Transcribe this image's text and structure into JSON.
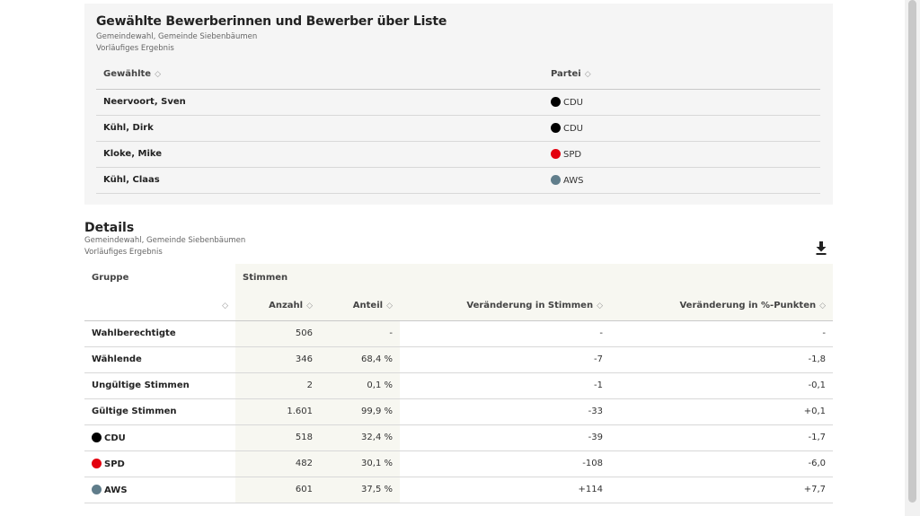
{
  "elected": {
    "title": "Gewählte Bewerberinnen und Bewerber über Liste",
    "subtitle1": "Gemeindewahl, Gemeinde Siebenbäumen",
    "subtitle2": "Vorläufiges Ergebnis",
    "col_name": "Gewählte",
    "col_party": "Partei",
    "rows": [
      {
        "name": "Neervoort, Sven",
        "party": "CDU",
        "color": "#000000"
      },
      {
        "name": "Kühl, Dirk",
        "party": "CDU",
        "color": "#000000"
      },
      {
        "name": "Kloke, Mike",
        "party": "SPD",
        "color": "#e3000f"
      },
      {
        "name": "Kühl, Claas",
        "party": "AWS",
        "color": "#607d8b"
      }
    ]
  },
  "details": {
    "title": "Details",
    "subtitle1": "Gemeindewahl, Gemeinde Siebenbäumen",
    "subtitle2": "Vorläufiges Ergebnis",
    "download_icon": "download-icon",
    "col_group": "Gruppe",
    "col_votes": "Stimmen",
    "col_count": "Anzahl",
    "col_share": "Anteil",
    "col_change_votes": "Veränderung in Stimmen",
    "col_change_pct": "Veränderung in %-Punkten",
    "rows": [
      {
        "group": "Wahlberechtigte",
        "count": "506",
        "share": "-",
        "change": "-",
        "change_pct": "-"
      },
      {
        "group": "Wählende",
        "count": "346",
        "share": "68,4 %",
        "change": "-7",
        "change_pct": "-1,8"
      },
      {
        "group": "Ungültige Stimmen",
        "count": "2",
        "share": "0,1 %",
        "change": "-1",
        "change_pct": "-0,1"
      },
      {
        "group": "Gültige Stimmen",
        "count": "1.601",
        "share": "99,9 %",
        "change": "-33",
        "change_pct": "+0,1"
      },
      {
        "group": "CDU",
        "count": "518",
        "share": "32,4 %",
        "change": "-39",
        "change_pct": "-1,7",
        "color": "#000000"
      },
      {
        "group": "SPD",
        "count": "482",
        "share": "30,1 %",
        "change": "-108",
        "change_pct": "-6,0",
        "color": "#e3000f"
      },
      {
        "group": "AWS",
        "count": "601",
        "share": "37,5 %",
        "change": "+114",
        "change_pct": "+7,7",
        "color": "#607d8b"
      }
    ]
  }
}
